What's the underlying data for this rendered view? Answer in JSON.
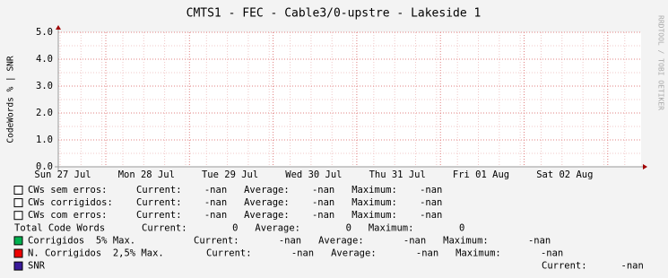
{
  "chart_data": {
    "type": "line",
    "title": "CMTS1 - FEC - Cable3/0-upstre - Lakeside 1",
    "y_label": "CodeWords % | SNR",
    "watermark": "RRDTOOL / TOBI OETIKER",
    "categories": [
      "Sun 27 Jul",
      "Mon 28 Jul",
      "Tue 29 Jul",
      "Wed 30 Jul",
      "Thu 31 Jul",
      "Fri 01 Aug",
      "Sat 02 Aug"
    ],
    "ylim": [
      0,
      5
    ],
    "yticks": [
      {
        "value": 0,
        "label": "0.0"
      },
      {
        "value": 1,
        "label": "1.0"
      },
      {
        "value": 2,
        "label": "2.0"
      },
      {
        "value": 3,
        "label": "3.0"
      },
      {
        "value": 4,
        "label": "4.0"
      },
      {
        "value": 5,
        "label": "5.0"
      }
    ],
    "grid": true,
    "series": [
      {
        "name": "CWs sem erros:",
        "color": "#ffffff",
        "stats": "Current:    -nan   Average:    -nan   Maximum:    -nan"
      },
      {
        "name": "CWs corrigidos:",
        "color": "#ffffff",
        "stats": "Current:    -nan   Average:    -nan   Maximum:    -nan"
      },
      {
        "name": "CWs com erros:",
        "color": "#ffffff",
        "stats": "Current:    -nan   Average:    -nan   Maximum:    -nan"
      },
      {
        "name": "Total Code Words",
        "color": null,
        "stats": "Current:        0   Average:        0   Maximum:        0"
      },
      {
        "name": "Corrigidos  5% Max.",
        "color": "#00b050",
        "stats": "Current:       -nan   Average:       -nan   Maximum:       -nan"
      },
      {
        "name": "N. Corrigidos  2,5% Max.",
        "color": "#ee0000",
        "stats": "Current:       -nan   Average:       -nan   Maximum:       -nan"
      },
      {
        "name": "SNR",
        "color": "#3a1a9a",
        "stats": "Current:      -nan"
      }
    ]
  }
}
